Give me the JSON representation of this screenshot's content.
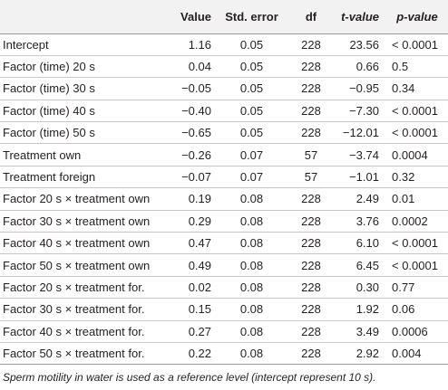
{
  "table": {
    "headers": {
      "label": "",
      "value": "Value",
      "std_error": "Std. error",
      "df": "df",
      "t_value": "t-value",
      "p_value": "p-value"
    },
    "rows": [
      {
        "label": "Intercept",
        "value": "1.16",
        "std_error": "0.05",
        "df": "228",
        "t_value": "23.56",
        "p_value": "< 0.0001"
      },
      {
        "label": "Factor (time) 20 s",
        "value": "0.04",
        "std_error": "0.05",
        "df": "228",
        "t_value": "0.66",
        "p_value": "0.5"
      },
      {
        "label": "Factor (time) 30 s",
        "value": "−0.05",
        "std_error": "0.05",
        "df": "228",
        "t_value": "−0.95",
        "p_value": "0.34"
      },
      {
        "label": "Factor (time) 40 s",
        "value": "−0.40",
        "std_error": "0.05",
        "df": "228",
        "t_value": "−7.30",
        "p_value": "< 0.0001"
      },
      {
        "label": "Factor (time) 50 s",
        "value": "−0.65",
        "std_error": "0.05",
        "df": "228",
        "t_value": "−12.01",
        "p_value": "< 0.0001"
      },
      {
        "label": "Treatment own",
        "value": "−0.26",
        "std_error": "0.07",
        "df": "57",
        "t_value": "−3.74",
        "p_value": "0.0004"
      },
      {
        "label": "Treatment foreign",
        "value": "−0.07",
        "std_error": "0.07",
        "df": "57",
        "t_value": "−1.01",
        "p_value": "0.32"
      },
      {
        "label": "Factor 20 s × treatment own",
        "value": "0.19",
        "std_error": "0.08",
        "df": "228",
        "t_value": "2.49",
        "p_value": "0.01"
      },
      {
        "label": "Factor 30 s × treatment own",
        "value": "0.29",
        "std_error": "0.08",
        "df": "228",
        "t_value": "3.76",
        "p_value": "0.0002"
      },
      {
        "label": "Factor 40 s × treatment own",
        "value": "0.47",
        "std_error": "0.08",
        "df": "228",
        "t_value": "6.10",
        "p_value": "< 0.0001"
      },
      {
        "label": "Factor 50 s × treatment own",
        "value": "0.49",
        "std_error": "0.08",
        "df": "228",
        "t_value": "6.45",
        "p_value": "< 0.0001"
      },
      {
        "label": "Factor 20 s × treatment for.",
        "value": "0.02",
        "std_error": "0.08",
        "df": "228",
        "t_value": "0.30",
        "p_value": "0.77"
      },
      {
        "label": "Factor 30 s × treatment for.",
        "value": "0.15",
        "std_error": "0.08",
        "df": "228",
        "t_value": "1.92",
        "p_value": "0.06"
      },
      {
        "label": "Factor 40 s × treatment for.",
        "value": "0.27",
        "std_error": "0.08",
        "df": "228",
        "t_value": "3.49",
        "p_value": "0.0006"
      },
      {
        "label": "Factor 50 s × treatment for.",
        "value": "0.22",
        "std_error": "0.08",
        "df": "228",
        "t_value": "2.92",
        "p_value": "0.004"
      }
    ],
    "footnote": "Sperm motility in water is used as a reference level (intercept represent 10 s).",
    "colors": {
      "header_background": "#f2f2f2",
      "text": "#231f20",
      "rule": "#c8c8c8"
    }
  }
}
